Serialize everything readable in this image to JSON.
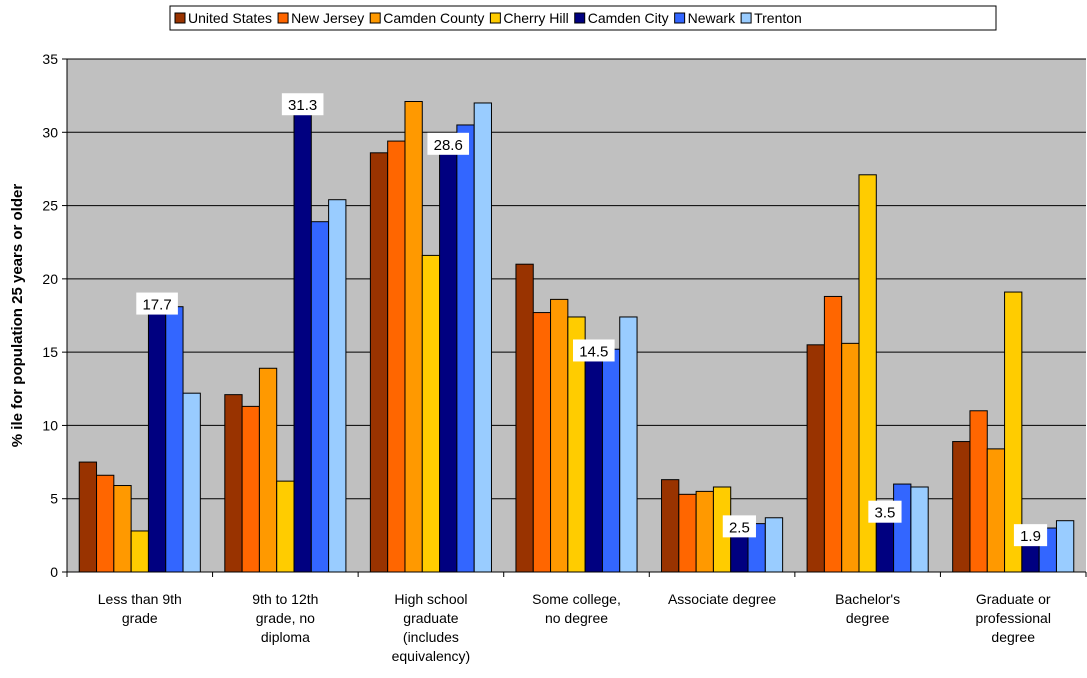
{
  "chart_data": {
    "type": "bar",
    "title": "",
    "ylabel": "% ile for population 25 years or older",
    "xlabel": "",
    "ylim": [
      0,
      35
    ],
    "yticks": [
      0,
      5,
      10,
      15,
      20,
      25,
      30,
      35
    ],
    "grid": true,
    "legend_position": "top",
    "plot_background": "#c0c0c0",
    "categories": [
      [
        "Less than 9th",
        "grade"
      ],
      [
        "9th to 12th",
        "grade, no",
        "diploma"
      ],
      [
        "High school",
        "graduate",
        "(includes",
        "equivalency)"
      ],
      [
        "Some college,",
        "no degree"
      ],
      [
        "Associate degree"
      ],
      [
        "Bachelor's",
        "degree"
      ],
      [
        "Graduate or",
        "professional",
        "degree"
      ]
    ],
    "series": [
      {
        "name": "United States",
        "color": "#993300",
        "values": [
          7.5,
          12.1,
          28.6,
          21.0,
          6.3,
          15.5,
          8.9
        ]
      },
      {
        "name": "New Jersey",
        "color": "#ff6600",
        "values": [
          6.6,
          11.3,
          29.4,
          17.7,
          5.3,
          18.8,
          11.0
        ]
      },
      {
        "name": "Camden County",
        "color": "#ff9900",
        "values": [
          5.9,
          13.9,
          32.1,
          18.6,
          5.5,
          15.6,
          8.4
        ]
      },
      {
        "name": "Cherry Hill",
        "color": "#ffcc00",
        "values": [
          2.8,
          6.2,
          21.6,
          17.4,
          5.8,
          27.1,
          19.1
        ]
      },
      {
        "name": "Camden City",
        "color": "#000080",
        "values": [
          17.7,
          31.3,
          28.6,
          14.5,
          2.5,
          3.5,
          1.9
        ]
      },
      {
        "name": "Newark",
        "color": "#3366ff",
        "values": [
          18.1,
          23.9,
          30.5,
          15.2,
          3.3,
          6.0,
          3.0
        ]
      },
      {
        "name": "Trenton",
        "color": "#99ccff",
        "values": [
          12.2,
          25.4,
          32.0,
          17.4,
          3.7,
          5.8,
          3.5
        ]
      }
    ],
    "data_labels": [
      {
        "series": "Camden City",
        "category_index": 0,
        "text": "17.7"
      },
      {
        "series": "Camden City",
        "category_index": 1,
        "text": "31.3"
      },
      {
        "series": "Camden City",
        "category_index": 2,
        "text": "28.6"
      },
      {
        "series": "Camden City",
        "category_index": 3,
        "text": "14.5"
      },
      {
        "series": "Camden City",
        "category_index": 4,
        "text": "2.5"
      },
      {
        "series": "Camden City",
        "category_index": 5,
        "text": "3.5"
      },
      {
        "series": "Camden City",
        "category_index": 6,
        "text": "1.9"
      }
    ]
  }
}
